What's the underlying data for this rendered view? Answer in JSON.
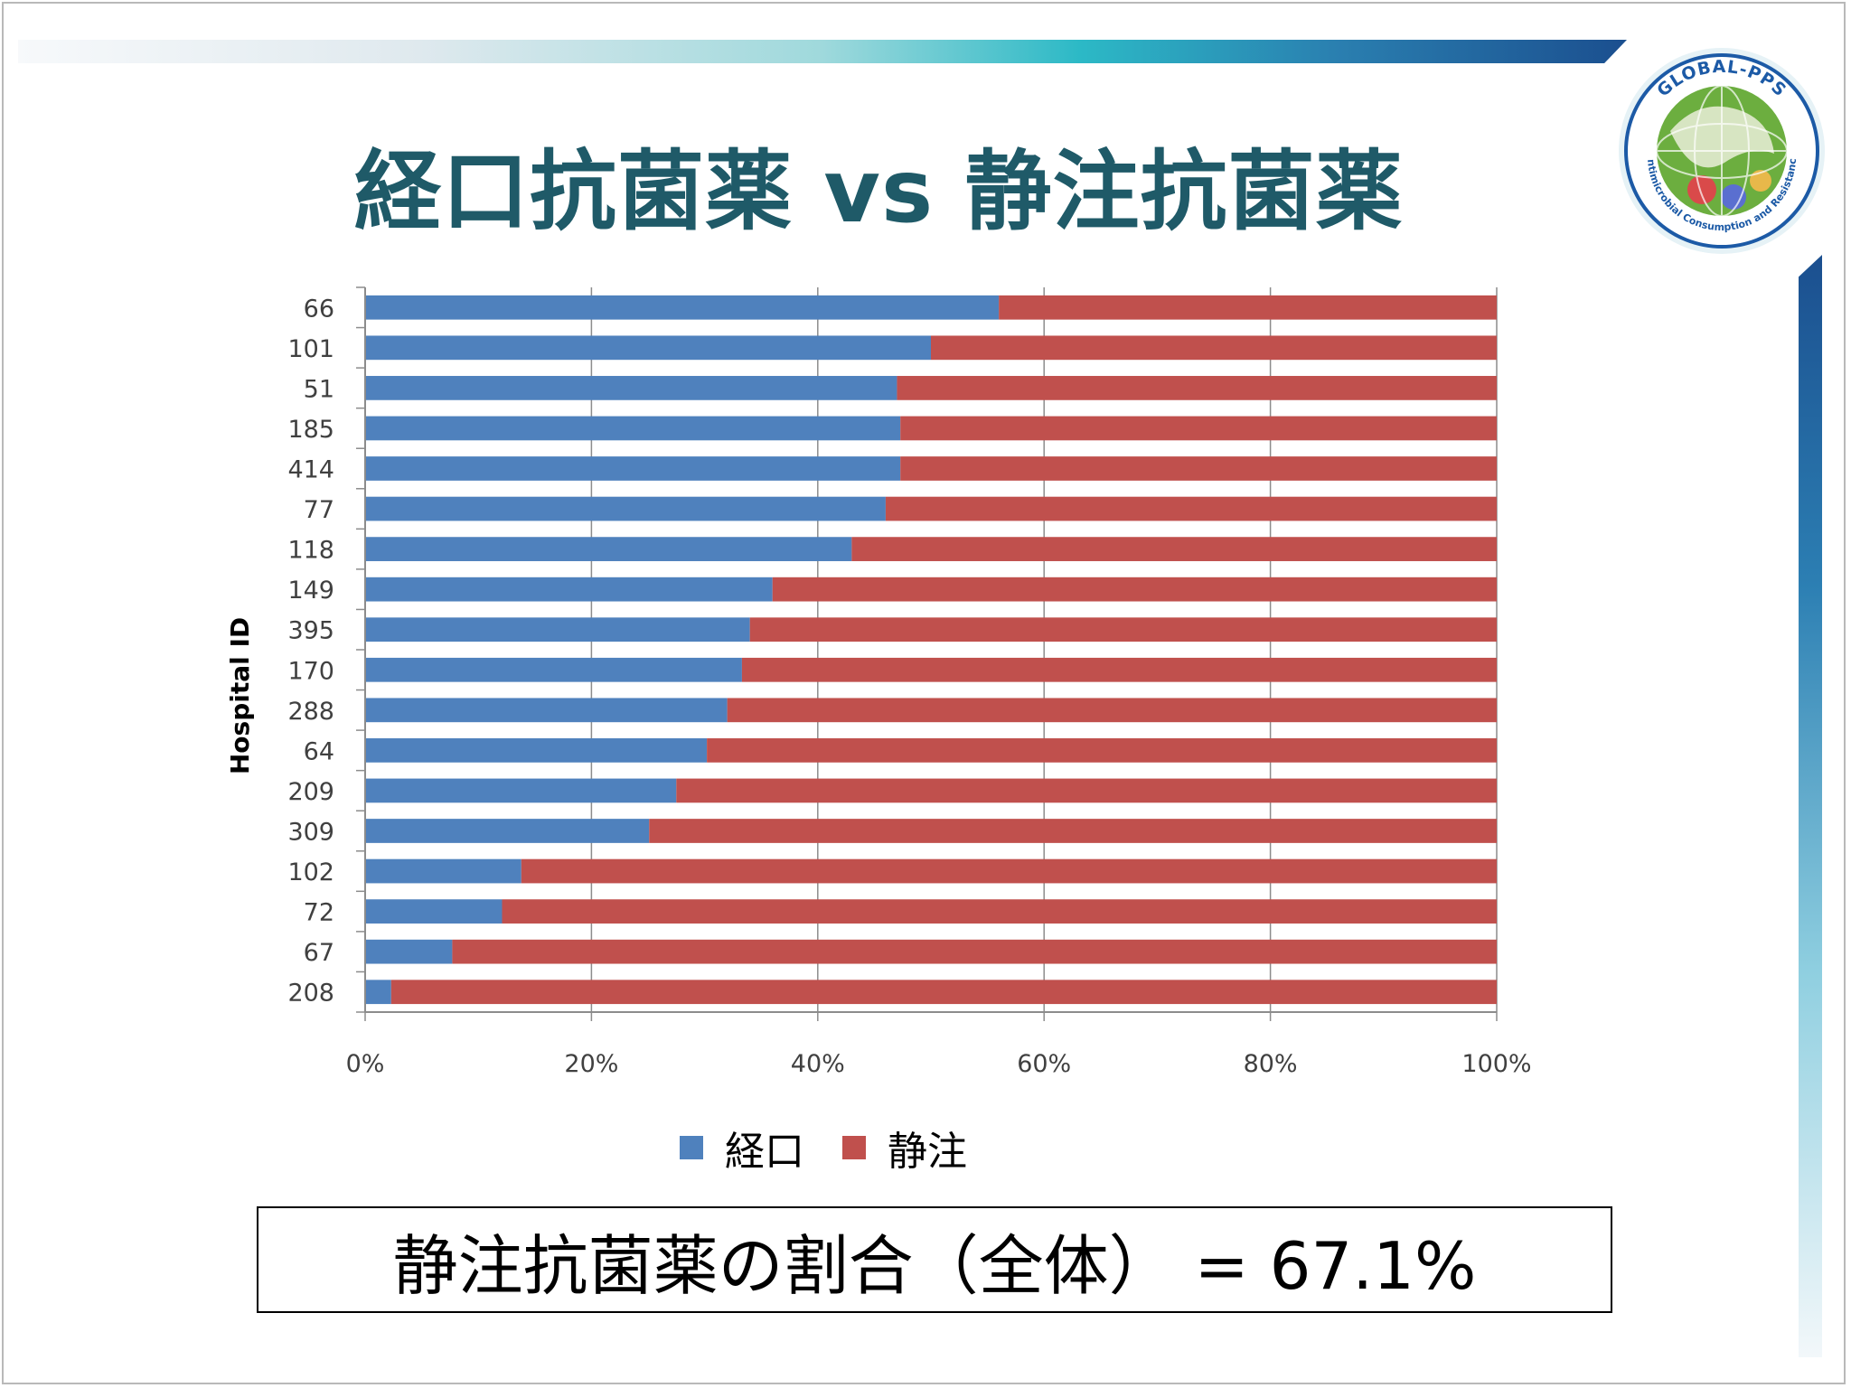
{
  "slide": {
    "title": "経口抗菌薬 vs 静注抗菌薬",
    "summary": "静注抗菌薬の割合（全体） = 67.1%"
  },
  "logo": {
    "top_text": "GLOBAL-PPS",
    "ring_text": "Antimicrobial Consumption and Resistance",
    "colors": {
      "ring": "#1c5aa6",
      "center": "#6cae3f"
    }
  },
  "chart_data": {
    "type": "bar",
    "orientation": "horizontal",
    "stacked": "percent",
    "ylabel": "Hospital ID",
    "xlabel": "",
    "categories": [
      "66",
      "101",
      "51",
      "185",
      "414",
      "77",
      "118",
      "149",
      "395",
      "170",
      "288",
      "64",
      "209",
      "309",
      "102",
      "72",
      "67",
      "208"
    ],
    "series": [
      {
        "name": "経口",
        "color": "#4f81bd",
        "values": [
          56,
          50,
          47,
          47.3,
          47.3,
          46,
          43,
          36,
          34,
          33.3,
          32,
          30.2,
          27.5,
          25.1,
          13.8,
          12.1,
          7.7,
          2.3
        ]
      },
      {
        "name": "静注",
        "color": "#c0504d",
        "values": [
          44,
          50,
          53,
          52.7,
          52.7,
          54,
          57,
          64,
          66,
          66.7,
          68,
          69.8,
          72.5,
          74.9,
          86.2,
          87.9,
          92.3,
          97.7
        ]
      }
    ],
    "xlim": [
      0,
      100
    ],
    "xticks": [
      "0%",
      "20%",
      "40%",
      "60%",
      "80%",
      "100%"
    ],
    "grid": "vertical",
    "legend_position": "bottom"
  }
}
